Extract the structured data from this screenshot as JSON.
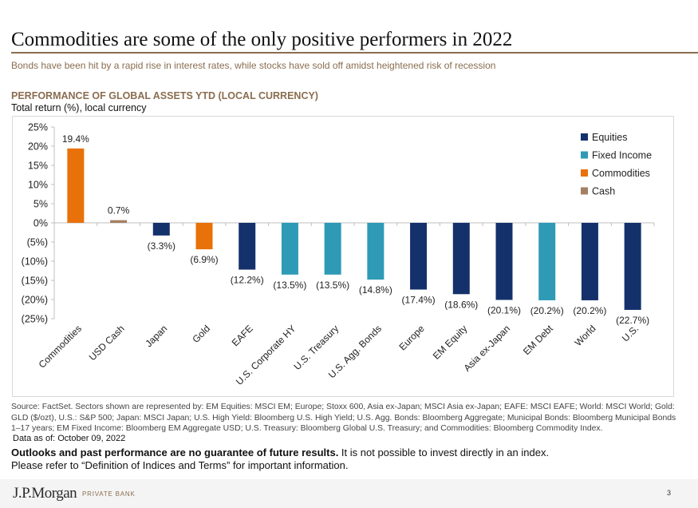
{
  "header": {
    "title": "Commodities are some of the only positive performers in 2022",
    "subtitle": "Bonds have been hit by a rapid rise in interest rates, while stocks have sold off amidst heightened risk of recession"
  },
  "chart_header": {
    "heading": "PERFORMANCE OF GLOBAL ASSETS YTD (LOCAL CURRENCY)",
    "subheading": "Total return (%), local currency"
  },
  "colors": {
    "equities": "#14316b",
    "fixed_income": "#2e9ab5",
    "commodities": "#e8710a",
    "cash": "#a57f63",
    "accent": "#8a6d4f"
  },
  "chart_data": {
    "type": "bar",
    "title": "PERFORMANCE OF GLOBAL ASSETS YTD (LOCAL CURRENCY)",
    "subtitle": "Total return (%), local currency",
    "xlabel": "",
    "ylabel": "",
    "ylim": [
      -25,
      25
    ],
    "yticks": [
      25,
      20,
      15,
      10,
      5,
      0,
      -5,
      -10,
      -15,
      -20,
      -25
    ],
    "ytick_labels": [
      "25%",
      "20%",
      "15%",
      "10%",
      "5%",
      "0%",
      "(5%)",
      "(10%)",
      "(15%)",
      "(20%)",
      "(25%)"
    ],
    "grid": false,
    "legend_position": "top-right",
    "legend": [
      {
        "name": "Equities",
        "key": "equities"
      },
      {
        "name": "Fixed Income",
        "key": "fixed_income"
      },
      {
        "name": "Commodities",
        "key": "commodities"
      },
      {
        "name": "Cash",
        "key": "cash"
      }
    ],
    "categories": [
      "Commodities",
      "USD Cash",
      "Japan",
      "Gold",
      "EAFE",
      "U.S. Corporate HY",
      "U.S. Treasury",
      "U.S. Agg. Bonds",
      "Europe",
      "EM Equity",
      "Asia ex-Japan",
      "EM Debt",
      "World",
      "U.S."
    ],
    "values": [
      19.4,
      0.7,
      -3.3,
      -6.9,
      -12.2,
      -13.5,
      -13.5,
      -14.8,
      -17.4,
      -18.6,
      -20.1,
      -20.2,
      -20.2,
      -22.7
    ],
    "data_labels": [
      "19.4%",
      "0.7%",
      "(3.3%)",
      "(6.9%)",
      "(12.2%)",
      "(13.5%)",
      "(13.5%)",
      "(14.8%)",
      "(17.4%)",
      "(18.6%)",
      "(20.1%)",
      "(20.2%)",
      "(20.2%)",
      "(22.7%)"
    ],
    "asset_class": [
      "commodities",
      "cash",
      "equities",
      "commodities",
      "equities",
      "fixed_income",
      "fixed_income",
      "fixed_income",
      "equities",
      "equities",
      "equities",
      "fixed_income",
      "equities",
      "equities"
    ]
  },
  "notes": {
    "source": "Source: FactSet. Sectors shown are represented by: EM Equities: MSCI EM; Europe; Stoxx 600, Asia ex-Japan; MSCI Asia ex-Japan; EAFE: MSCI EAFE; World: MSCI World; Gold: GLD ($/ozt), U.S.: S&P 500; Japan: MSCI Japan; U.S. High Yield: Bloomberg U.S. High Yield; U.S. Agg. Bonds: Bloomberg Aggregate; Municipal Bonds: Bloomberg Municipal Bonds 1–17 years; EM Fixed Income: Bloomberg EM Aggregate USD; U.S. Treasury: Bloomberg Global U.S. Treasury; and Commodities: Bloomberg Commodity Index.",
    "as_of": "Data as of: October 09, 2022",
    "disclaimer_bold": "Outlooks and past performance are no guarantee of future results.",
    "disclaimer_rest": " It is not possible to invest directly in an index.",
    "disclaimer_line2": "Please refer to “Definition of Indices and Terms” for important information."
  },
  "footer": {
    "logo": "J.P.Morgan",
    "logo_sub": "PRIVATE BANK",
    "page_number": "3"
  }
}
